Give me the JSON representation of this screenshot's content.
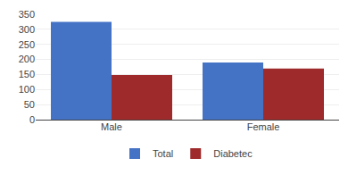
{
  "chart_data": {
    "type": "bar",
    "categories": [
      "Male",
      "Female"
    ],
    "series": [
      {
        "name": "Total",
        "color": "#4472C4",
        "values": [
          325,
          190
        ]
      },
      {
        "name": "Diabetec",
        "color": "#9E2A2B",
        "values": [
          148,
          170
        ]
      }
    ],
    "ylim": [
      0,
      350
    ],
    "yticks": [
      0,
      50,
      100,
      150,
      200,
      250,
      300,
      350
    ],
    "grid": true,
    "legend": "bottom"
  }
}
